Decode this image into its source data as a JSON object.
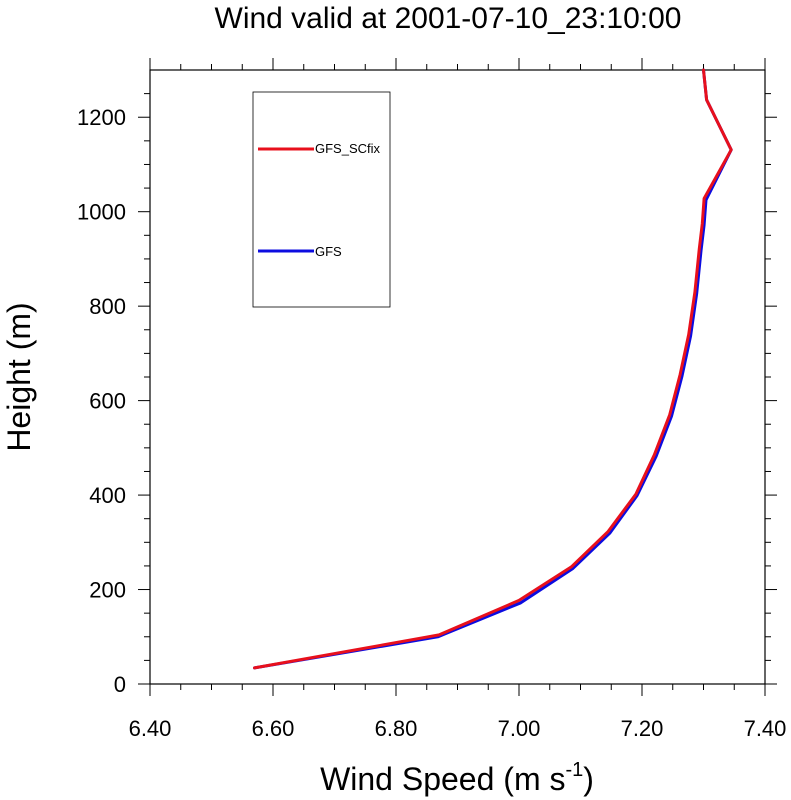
{
  "chart_data": {
    "type": "line",
    "title": "Wind valid at 2001-07-10_23:10:00",
    "xlabel": "Wind Speed (m s",
    "xlabel_sup": "-1",
    "xlabel_close": ")",
    "ylabel": "Height (m)",
    "xlim": [
      6.4,
      7.4
    ],
    "ylim": [
      0,
      1300
    ],
    "xticks": [
      6.4,
      6.6,
      6.8,
      7.0,
      7.2,
      7.4
    ],
    "xtick_labels": [
      "6.40",
      "6.60",
      "6.80",
      "7.00",
      "7.20",
      "7.40"
    ],
    "yticks": [
      0,
      200,
      400,
      600,
      800,
      1000,
      1200
    ],
    "ytick_labels": [
      "0",
      "200",
      "400",
      "600",
      "800",
      "1000",
      "1200"
    ],
    "grid": false,
    "legend_position": "top-left",
    "series": [
      {
        "name": "GFS_SCfix",
        "color": "#e8101c",
        "points": [
          [
            6.57,
            34
          ],
          [
            6.87,
            104
          ],
          [
            7.0,
            177
          ],
          [
            7.085,
            248
          ],
          [
            7.145,
            323
          ],
          [
            7.19,
            402
          ],
          [
            7.22,
            485
          ],
          [
            7.245,
            570
          ],
          [
            7.262,
            655
          ],
          [
            7.276,
            740
          ],
          [
            7.286,
            830
          ],
          [
            7.293,
            920
          ],
          [
            7.298,
            975
          ],
          [
            7.301,
            1028
          ],
          [
            7.345,
            1131
          ],
          [
            7.305,
            1237
          ],
          [
            7.3,
            1300
          ]
        ]
      },
      {
        "name": "GFS",
        "color": "#0c0ce0",
        "points": [
          [
            6.57,
            34
          ],
          [
            6.868,
            100
          ],
          [
            7.003,
            172
          ],
          [
            7.087,
            244
          ],
          [
            7.148,
            320
          ],
          [
            7.192,
            399
          ],
          [
            7.223,
            482
          ],
          [
            7.248,
            567
          ],
          [
            7.265,
            652
          ],
          [
            7.279,
            737
          ],
          [
            7.289,
            827
          ],
          [
            7.296,
            917
          ],
          [
            7.301,
            972
          ],
          [
            7.304,
            1025
          ],
          [
            7.345,
            1131
          ],
          [
            7.305,
            1237
          ],
          [
            7.3,
            1300
          ]
        ]
      }
    ]
  }
}
